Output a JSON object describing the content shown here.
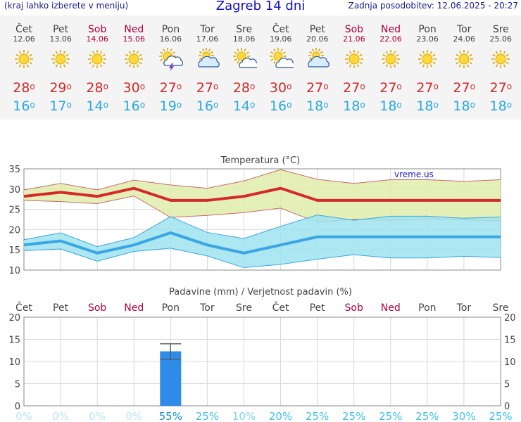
{
  "header": {
    "menu_note": "(kraj lahko izberete v meniju)",
    "title": "Zagreb 14 dni",
    "last_update": "Zadnja posodobitev: 12.06.2025 - 20:27"
  },
  "days": [
    {
      "name": "Čet",
      "date": "12.06",
      "weekend": false,
      "icon": "sun-icon",
      "tmax": "28",
      "tmin": "16"
    },
    {
      "name": "Pet",
      "date": "13.06",
      "weekend": false,
      "icon": "sun-icon",
      "tmax": "29",
      "tmin": "17"
    },
    {
      "name": "Sob",
      "date": "14.06",
      "weekend": true,
      "icon": "sun-icon",
      "tmax": "28",
      "tmin": "14"
    },
    {
      "name": "Ned",
      "date": "15.06",
      "weekend": true,
      "icon": "sun-icon",
      "tmax": "30",
      "tmin": "16"
    },
    {
      "name": "Pon",
      "date": "16.06",
      "weekend": false,
      "icon": "thunderstorm-icon",
      "tmax": "27",
      "tmin": "19"
    },
    {
      "name": "Tor",
      "date": "17.06",
      "weekend": false,
      "icon": "partly-cloudy-icon",
      "tmax": "27",
      "tmin": "16"
    },
    {
      "name": "Sre",
      "date": "18.06",
      "weekend": false,
      "icon": "sun-cloud-icon",
      "tmax": "28",
      "tmin": "14"
    },
    {
      "name": "Čet",
      "date": "19.06",
      "weekend": false,
      "icon": "sun-cloud-icon",
      "tmax": "30",
      "tmin": "16"
    },
    {
      "name": "Pet",
      "date": "20.06",
      "weekend": false,
      "icon": "partly-cloudy-icon",
      "tmax": "27",
      "tmin": "18"
    },
    {
      "name": "Sob",
      "date": "21.06",
      "weekend": true,
      "icon": "sun-icon",
      "tmax": "27",
      "tmin": "18"
    },
    {
      "name": "Ned",
      "date": "22.06",
      "weekend": true,
      "icon": "sun-icon",
      "tmax": "27",
      "tmin": "18"
    },
    {
      "name": "Pon",
      "date": "23.06",
      "weekend": false,
      "icon": "sun-icon",
      "tmax": "27",
      "tmin": "18"
    },
    {
      "name": "Tor",
      "date": "24.06",
      "weekend": false,
      "icon": "sun-icon",
      "tmax": "27",
      "tmin": "18"
    },
    {
      "name": "Sre",
      "date": "25.06",
      "weekend": false,
      "icon": "sun-icon",
      "tmax": "27",
      "tmin": "18"
    }
  ],
  "degree_symbol": "o",
  "colors": {
    "weekend": "#b0003a",
    "max": "#d42a2a",
    "min": "#2aa8e0",
    "precip_bar": "#2f8be8"
  },
  "chart_data": [
    {
      "type": "line",
      "title": "Temperatura (°C)",
      "watermark": "vreme.us",
      "x": [
        1,
        2,
        3,
        4,
        5,
        6,
        7,
        8,
        9,
        10,
        11,
        12,
        13,
        14
      ],
      "ylim": [
        10,
        35
      ],
      "yticks": [
        "10",
        "15",
        "20",
        "25",
        "30",
        "35"
      ],
      "grid": true,
      "series": [
        {
          "name": "max",
          "values": [
            28.2,
            29.2,
            28.2,
            30.2,
            27.2,
            27.2,
            28.2,
            30.2,
            27.2,
            27.2,
            27.2,
            27.2,
            27.2,
            27.2
          ]
        },
        {
          "name": "max_upper",
          "values": [
            29.8,
            31.4,
            29.8,
            32.2,
            31,
            30.2,
            32,
            34.8,
            32.4,
            31.4,
            32.3,
            32.3,
            31.9,
            32.3
          ]
        },
        {
          "name": "max_lower",
          "values": [
            27.2,
            26.9,
            26.4,
            28.3,
            23,
            23.5,
            24.2,
            25.3,
            21.8,
            22.5,
            22.3,
            22.6,
            22.4,
            22.1
          ]
        },
        {
          "name": "min",
          "values": [
            16.2,
            17.2,
            14.2,
            16.2,
            19.2,
            16.2,
            14.2,
            16.2,
            18.2,
            18.2,
            18.2,
            18.2,
            18.2,
            18.2
          ]
        },
        {
          "name": "min_upper",
          "values": [
            17.5,
            19.2,
            15.8,
            18,
            23.2,
            19.3,
            17.8,
            20.8,
            23.6,
            22.3,
            23.3,
            23.3,
            22.8,
            23.1
          ]
        },
        {
          "name": "min_lower",
          "values": [
            14.8,
            15.2,
            12.2,
            14.6,
            15.4,
            13.5,
            10.6,
            11.4,
            12.7,
            13.8,
            13,
            13,
            13.4,
            13.1
          ]
        }
      ]
    },
    {
      "type": "bar",
      "title": "Padavine (mm) / Verjetnost padavin (%)",
      "categories": [
        "Čet",
        "Pet",
        "Sob",
        "Ned",
        "Pon",
        "Tor",
        "Sre",
        "Čet",
        "Pet",
        "Sob",
        "Ned",
        "Pon",
        "Tor",
        "Sre"
      ],
      "values": [
        0,
        0,
        0,
        0,
        12.3,
        0,
        0,
        0,
        0,
        0,
        0,
        0,
        0,
        0
      ],
      "error_range": [
        10.5,
        14
      ],
      "probability": [
        "0%",
        "0%",
        "0%",
        "0%",
        "55%",
        "25%",
        "10%",
        "20%",
        "25%",
        "25%",
        "25%",
        "25%",
        "30%",
        "25%"
      ],
      "ylim": [
        0,
        20
      ],
      "yticks": [
        "0",
        "5",
        "10",
        "15",
        "20"
      ],
      "grid": true
    }
  ]
}
